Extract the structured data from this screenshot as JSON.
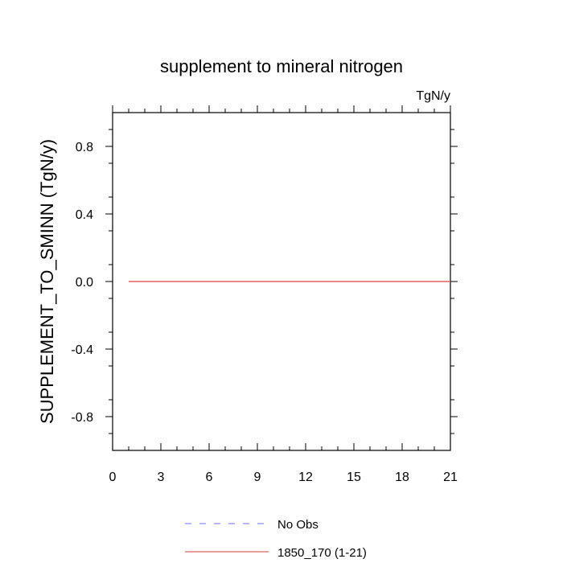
{
  "chart_data": {
    "type": "line",
    "title": "supplement to mineral nitrogen",
    "units": "TgN/y",
    "xlabel": "",
    "ylabel": "SUPPLEMENT_TO_SMINN  (TgN/y)",
    "xlim": [
      0,
      21
    ],
    "ylim": [
      -1,
      1
    ],
    "xticks": [
      0,
      3,
      6,
      9,
      12,
      15,
      18,
      21
    ],
    "xtick_labels": [
      "0",
      "3",
      "6",
      "9",
      "12",
      "15",
      "18",
      "21"
    ],
    "yticks": [
      0.8,
      0.4,
      0.0,
      -0.4,
      -0.8
    ],
    "ytick_labels": [
      "0.8",
      "0.4",
      "0.0",
      "-0.4",
      "-0.8"
    ],
    "grid": false,
    "legend_position": "bottom",
    "series": [
      {
        "name": "No Obs",
        "color": "#8c8cff",
        "style": "dashed",
        "x": [],
        "y": []
      },
      {
        "name": "1850_170 (1-21)",
        "color": "#e06060",
        "style": "solid",
        "x": [
          1,
          21
        ],
        "y": [
          0,
          0
        ]
      }
    ]
  }
}
